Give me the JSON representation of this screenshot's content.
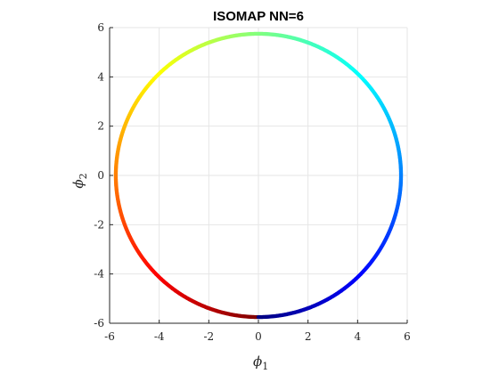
{
  "chart_data": {
    "type": "scatter",
    "title": "ISOMAP NN=6",
    "xlabel": {
      "symbol": "ϕ",
      "subscript": "1"
    },
    "ylabel": {
      "symbol": "ϕ",
      "subscript": "2"
    },
    "xlim": [
      -6,
      6
    ],
    "ylim": [
      -6,
      6
    ],
    "xticks": [
      -6,
      -4,
      -2,
      0,
      2,
      4,
      6
    ],
    "yticks": [
      -6,
      -4,
      -2,
      0,
      2,
      4,
      6
    ],
    "xtick_labels": [
      "-6",
      "-4",
      "-2",
      "0",
      "2",
      "4",
      "6"
    ],
    "ytick_labels": [
      "-6",
      "-4",
      "-2",
      "0",
      "2",
      "4",
      "6"
    ],
    "grid": true,
    "colormap": "jet",
    "series": [
      {
        "shape": "circle",
        "center": [
          0,
          0
        ],
        "radius": 5.75,
        "color_start_angle_deg": -90,
        "color_direction": "counterclockwise"
      }
    ],
    "colors": {
      "axis": "#262626",
      "grid": "#e6e6e6",
      "background": "#ffffff"
    }
  }
}
